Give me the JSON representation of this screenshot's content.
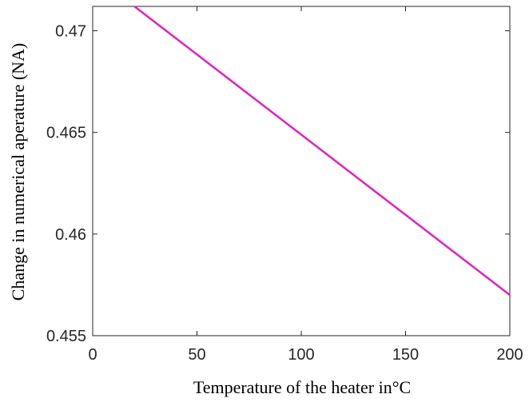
{
  "chart_data": {
    "type": "line",
    "title": "",
    "xlabel": "Temperature of the heater in°C",
    "ylabel": "Change in numerical aperature (NA)",
    "xlim": [
      0,
      200
    ],
    "ylim": [
      0.455,
      0.4712
    ],
    "xticks": [
      0,
      50,
      100,
      150,
      200
    ],
    "xtick_labels": [
      "0",
      "50",
      "100",
      "150",
      "200"
    ],
    "yticks": [
      0.455,
      0.46,
      0.465,
      0.47
    ],
    "ytick_labels": [
      "0.455",
      "0.46",
      "0.465",
      "0.47"
    ],
    "grid": false,
    "box": true,
    "series": [
      {
        "color": "#e020c0",
        "x": [
          20,
          200
        ],
        "y": [
          0.4712,
          0.457
        ]
      }
    ]
  }
}
